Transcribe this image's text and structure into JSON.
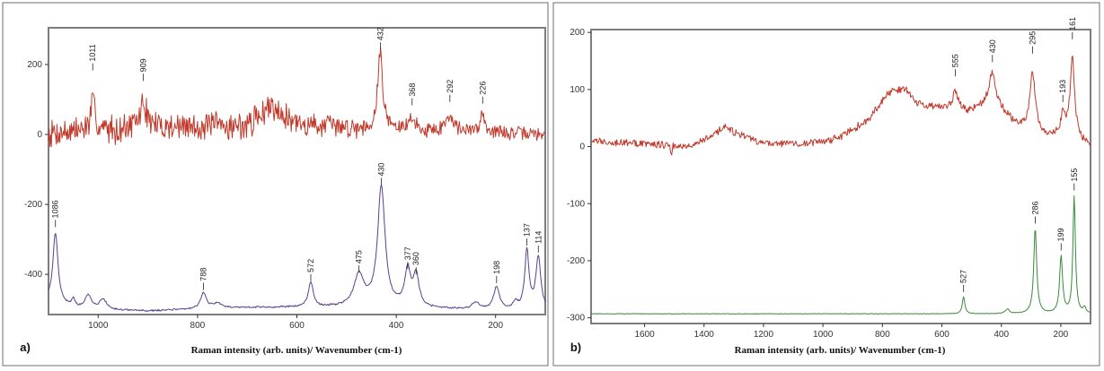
{
  "chart_data": [
    {
      "panel_label": "a)",
      "type": "line",
      "xlabel": "Raman intensity (arb. units)/ Wavenumber (cm-1)",
      "x_reversed": true,
      "xlim": [
        1100,
        100
      ],
      "ylim": [
        -515,
        305
      ],
      "x_ticks": [
        1000,
        800,
        600,
        400,
        200
      ],
      "y_ticks": [
        200,
        0,
        -200,
        -400
      ],
      "series": [
        {
          "color": "#c0392b",
          "baseline": 10,
          "noise": 48,
          "noise_seed": 7,
          "noise_taper": [
            [
              1100,
              1.0
            ],
            [
              700,
              1.0
            ],
            [
              400,
              0.6
            ],
            [
              100,
              0.45
            ]
          ],
          "background": [
            [
              1100,
              5
            ],
            [
              900,
              20
            ],
            [
              700,
              25
            ],
            [
              650,
              85
            ],
            [
              600,
              30
            ],
            [
              450,
              15
            ],
            [
              300,
              10
            ],
            [
              100,
              0
            ]
          ],
          "peaks": [
            {
              "x": 1011,
              "height": 85,
              "width": 5
            },
            {
              "x": 909,
              "height": 70,
              "width": 8
            },
            {
              "x": 432,
              "height": 225,
              "width": 6
            },
            {
              "x": 368,
              "height": 40,
              "width": 6
            },
            {
              "x": 292,
              "height": 50,
              "width": 8
            },
            {
              "x": 226,
              "height": 60,
              "width": 5
            }
          ],
          "peak_labels": [
            {
              "x": 1011,
              "y": 183,
              "label": "1011"
            },
            {
              "x": 909,
              "y": 153,
              "label": "909"
            },
            {
              "x": 432,
              "y": 243,
              "label": "432"
            },
            {
              "x": 368,
              "y": 83,
              "label": "368"
            },
            {
              "x": 292,
              "y": 93,
              "label": "292"
            },
            {
              "x": 226,
              "y": 88,
              "label": "226"
            }
          ]
        },
        {
          "color": "#5b3f8c",
          "baseline": -500,
          "noise": 3,
          "noise_seed": 21,
          "background": [
            [
              1100,
              -475
            ],
            [
              1050,
              -500
            ],
            [
              900,
              -505
            ],
            [
              700,
              -495
            ],
            [
              500,
              -495
            ],
            [
              300,
              -500
            ],
            [
              100,
              -505
            ]
          ],
          "peaks": [
            {
              "x": 1086,
              "height": 200,
              "width": 6
            },
            {
              "x": 1050,
              "height": 25,
              "width": 5
            },
            {
              "x": 1020,
              "height": 40,
              "width": 8
            },
            {
              "x": 990,
              "height": 30,
              "width": 8
            },
            {
              "x": 788,
              "height": 45,
              "width": 7
            },
            {
              "x": 760,
              "height": 15,
              "width": 10
            },
            {
              "x": 572,
              "height": 70,
              "width": 6
            },
            {
              "x": 475,
              "height": 90,
              "width": 12
            },
            {
              "x": 430,
              "height": 345,
              "width": 9
            },
            {
              "x": 377,
              "height": 105,
              "width": 7
            },
            {
              "x": 360,
              "height": 90,
              "width": 7
            },
            {
              "x": 240,
              "height": 20,
              "width": 8
            },
            {
              "x": 198,
              "height": 65,
              "width": 7
            },
            {
              "x": 160,
              "height": 20,
              "width": 6
            },
            {
              "x": 137,
              "height": 170,
              "width": 5
            },
            {
              "x": 114,
              "height": 150,
              "width": 6
            }
          ],
          "peak_labels": [
            {
              "x": 1086,
              "y": -265,
              "label": "1086"
            },
            {
              "x": 788,
              "y": -445,
              "label": "788"
            },
            {
              "x": 572,
              "y": -420,
              "label": "572"
            },
            {
              "x": 475,
              "y": -395,
              "label": "475"
            },
            {
              "x": 430,
              "y": -145,
              "label": "430"
            },
            {
              "x": 377,
              "y": -385,
              "label": "377"
            },
            {
              "x": 360,
              "y": -400,
              "label": "360"
            },
            {
              "x": 198,
              "y": -425,
              "label": "198"
            },
            {
              "x": 137,
              "y": -318,
              "label": "137"
            },
            {
              "x": 114,
              "y": -338,
              "label": "114"
            }
          ]
        }
      ]
    },
    {
      "panel_label": "b)",
      "type": "line",
      "xlabel": "Raman intensity (arb. units)/ Wavenumber (cm-1)",
      "x_reversed": true,
      "xlim": [
        1780,
        100
      ],
      "ylim": [
        -310,
        205
      ],
      "x_ticks": [
        1600,
        1400,
        1200,
        1000,
        800,
        600,
        400,
        200
      ],
      "y_ticks": [
        200,
        100,
        0,
        -100,
        -200,
        -300
      ],
      "series": [
        {
          "color": "#c0392b",
          "baseline": 5,
          "noise": 8,
          "noise_seed": 33,
          "background": [
            [
              1780,
              10
            ],
            [
              1600,
              5
            ],
            [
              1450,
              2
            ],
            [
              1380,
              15
            ],
            [
              1330,
              35
            ],
            [
              1280,
              20
            ],
            [
              1200,
              5
            ],
            [
              1050,
              5
            ],
            [
              950,
              15
            ],
            [
              850,
              45
            ],
            [
              780,
              95
            ],
            [
              720,
              100
            ],
            [
              680,
              75
            ],
            [
              600,
              65
            ],
            [
              520,
              60
            ],
            [
              470,
              70
            ],
            [
              400,
              60
            ],
            [
              350,
              40
            ],
            [
              300,
              30
            ],
            [
              230,
              20
            ],
            [
              180,
              25
            ],
            [
              120,
              5
            ],
            [
              100,
              5
            ]
          ],
          "peaks": [
            {
              "x": 1510,
              "height": -28,
              "width": 1.5
            },
            {
              "x": 555,
              "height": 35,
              "width": 12
            },
            {
              "x": 430,
              "height": 65,
              "width": 14
            },
            {
              "x": 295,
              "height": 100,
              "width": 10
            },
            {
              "x": 193,
              "height": 35,
              "width": 6
            },
            {
              "x": 161,
              "height": 135,
              "width": 9
            }
          ],
          "peak_labels": [
            {
              "x": 555,
              "y": 123,
              "label": "555"
            },
            {
              "x": 430,
              "y": 148,
              "label": "430"
            },
            {
              "x": 295,
              "y": 163,
              "label": "295"
            },
            {
              "x": 193,
              "y": 78,
              "label": "193"
            },
            {
              "x": 161,
              "y": 188,
              "label": "161"
            }
          ]
        },
        {
          "color": "#3a8a3a",
          "baseline": -293,
          "noise": 0.6,
          "noise_seed": 51,
          "background": [
            [
              1780,
              -293
            ],
            [
              100,
              -293
            ]
          ],
          "peaks": [
            {
              "x": 527,
              "height": 30,
              "width": 5
            },
            {
              "x": 380,
              "height": 8,
              "width": 8
            },
            {
              "x": 286,
              "height": 150,
              "width": 6
            },
            {
              "x": 199,
              "height": 100,
              "width": 6
            },
            {
              "x": 155,
              "height": 205,
              "width": 5
            },
            {
              "x": 120,
              "height": 10,
              "width": 5
            }
          ],
          "peak_labels": [
            {
              "x": 527,
              "y": -255,
              "label": "527"
            },
            {
              "x": 286,
              "y": -135,
              "label": "286"
            },
            {
              "x": 199,
              "y": -182,
              "label": "199"
            },
            {
              "x": 155,
              "y": -77,
              "label": "155"
            }
          ]
        }
      ]
    }
  ]
}
